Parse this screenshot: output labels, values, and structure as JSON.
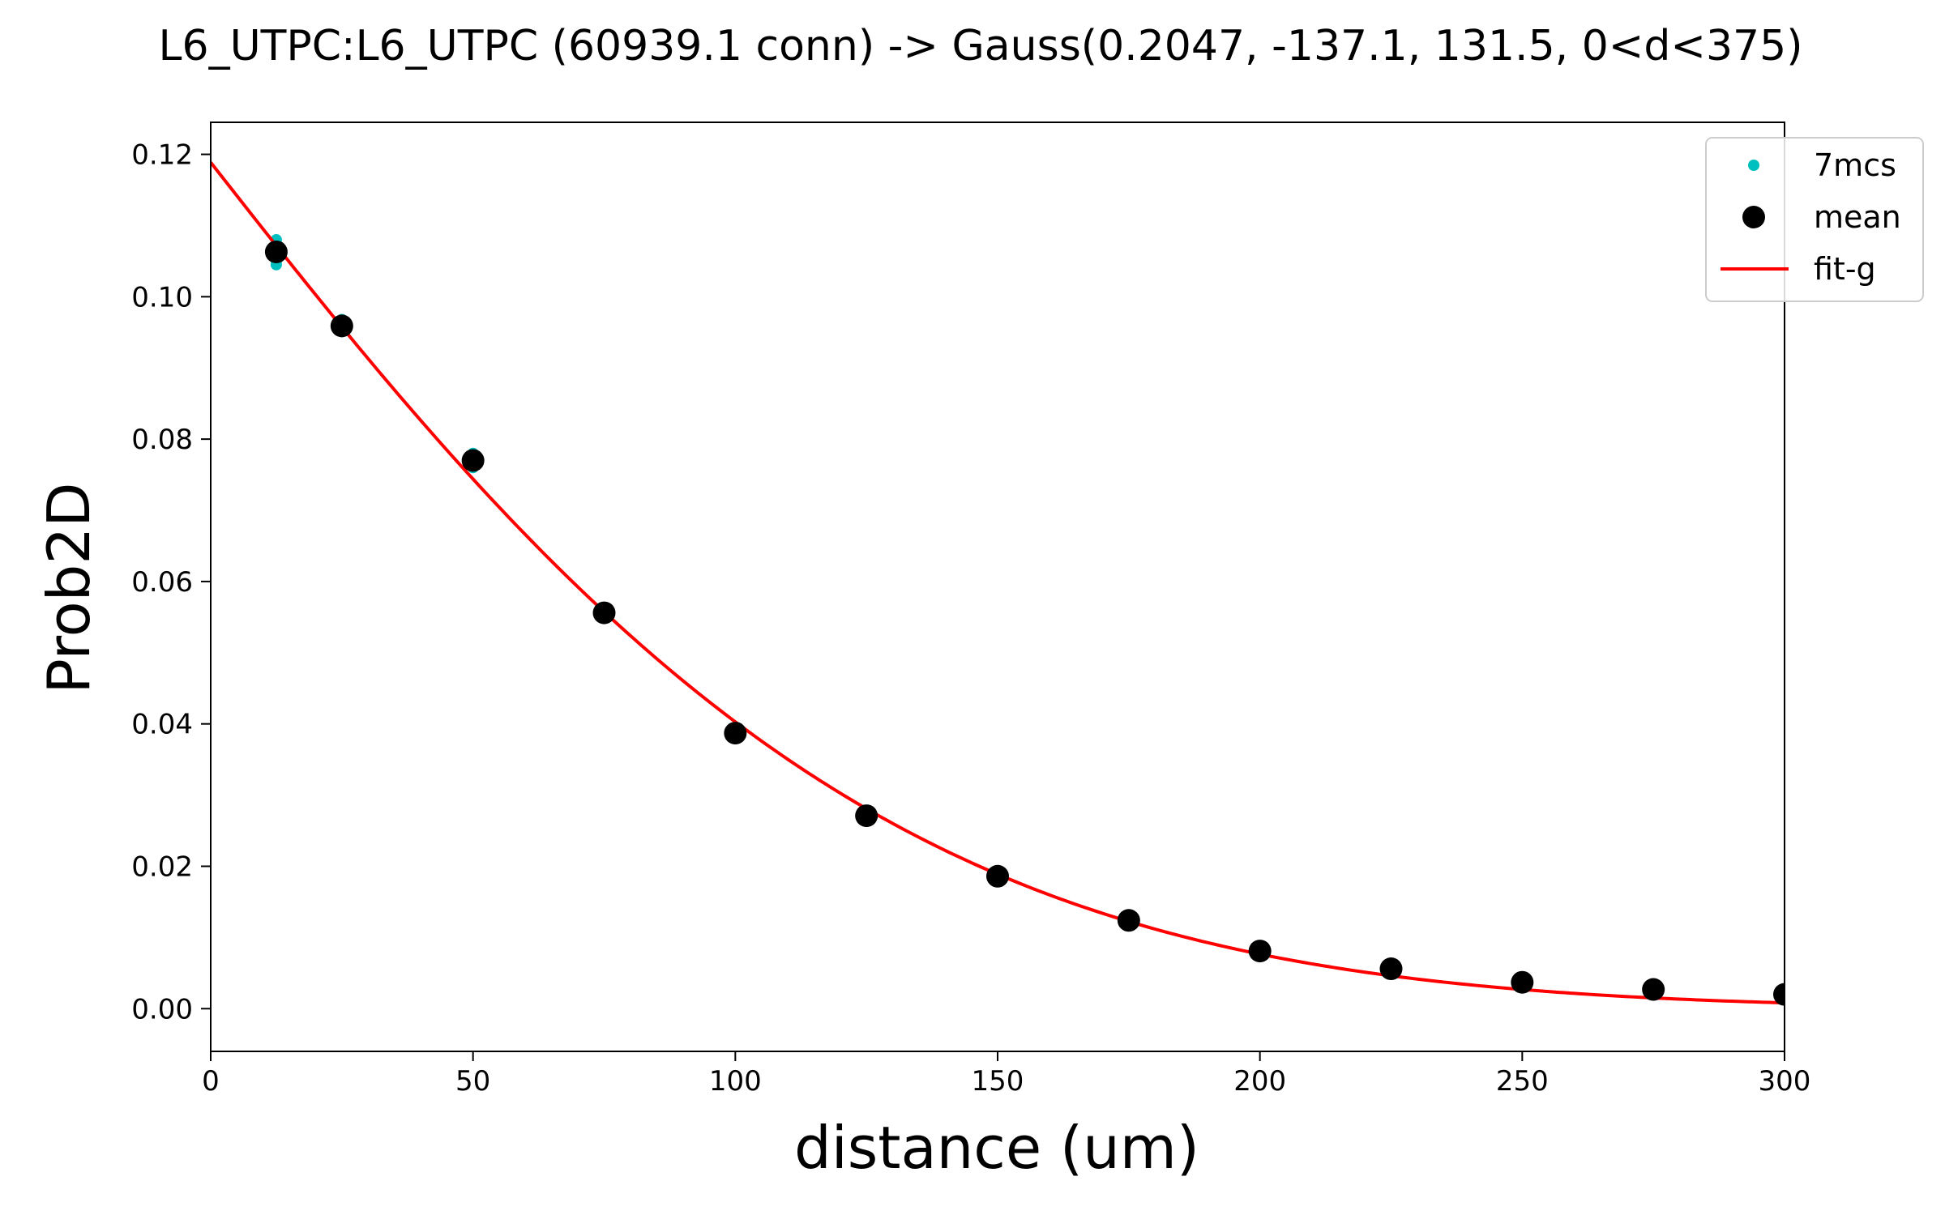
{
  "chart_data": {
    "type": "scatter",
    "title": "L6_UTPC:L6_UTPC (60939.1 conn) -> Gauss(0.2047, -137.1, 131.5, 0<d<375)",
    "xlabel": "distance (um)",
    "ylabel": "Prob2D",
    "xlim": [
      0,
      300
    ],
    "ylim": [
      -0.006,
      0.1245
    ],
    "xticks": [
      0,
      50,
      100,
      150,
      200,
      250,
      300
    ],
    "yticks": [
      0.0,
      0.02,
      0.04,
      0.06,
      0.08,
      0.1,
      0.12
    ],
    "ytick_labels": [
      "0.00",
      "0.02",
      "0.04",
      "0.06",
      "0.08",
      "0.10",
      "0.12"
    ],
    "legend_position": "top-right",
    "series": [
      {
        "name": "7mcs",
        "kind": "points",
        "color": "#00bfbf",
        "x": [
          12.5,
          12.5,
          12.5,
          12.5,
          12.5,
          12.5,
          12.5,
          25,
          25,
          25,
          25,
          25,
          25,
          25,
          50,
          50,
          50,
          50,
          50,
          50,
          50,
          75,
          75,
          75,
          75,
          75,
          75,
          75,
          100,
          100,
          100,
          125,
          125,
          125,
          150,
          150,
          175,
          175,
          200,
          200,
          225,
          225,
          250,
          250,
          275,
          275,
          300,
          300
        ],
        "y": [
          0.108,
          0.1075,
          0.107,
          0.106,
          0.1055,
          0.105,
          0.1045,
          0.0968,
          0.0963,
          0.096,
          0.0957,
          0.0954,
          0.0951,
          0.0955,
          0.078,
          0.0775,
          0.077,
          0.0767,
          0.0763,
          0.076,
          0.0772,
          0.0562,
          0.0558,
          0.0555,
          0.0552,
          0.0549,
          0.0557,
          0.0553,
          0.0391,
          0.0387,
          0.0384,
          0.0275,
          0.0271,
          0.0268,
          0.0188,
          0.0184,
          0.0126,
          0.0123,
          0.0083,
          0.008,
          0.0057,
          0.0054,
          0.0039,
          0.0036,
          0.0029,
          0.0026,
          0.0022,
          0.0019
        ]
      },
      {
        "name": "mean",
        "kind": "points",
        "color": "#000000",
        "x": [
          12.5,
          25,
          50,
          75,
          100,
          125,
          150,
          175,
          200,
          225,
          250,
          275,
          300
        ],
        "y": [
          0.1063,
          0.0959,
          0.077,
          0.0556,
          0.0387,
          0.0271,
          0.0186,
          0.0124,
          0.0081,
          0.0056,
          0.0037,
          0.0027,
          0.002
        ]
      },
      {
        "name": "fit-g",
        "kind": "line",
        "color": "#ff0000",
        "model": {
          "function": "gauss",
          "a": 0.2047,
          "mu": -137.1,
          "sigma": 131.5
        }
      }
    ]
  }
}
